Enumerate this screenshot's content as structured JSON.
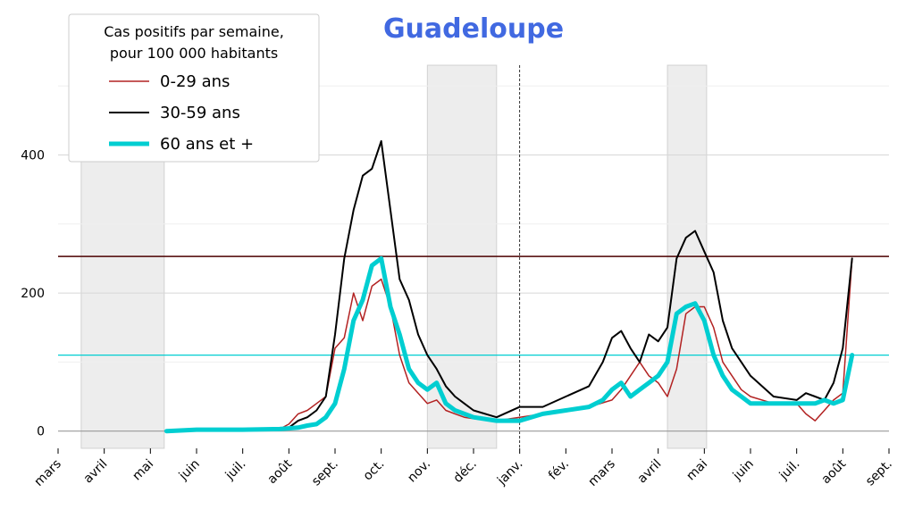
{
  "chart_data": {
    "type": "line",
    "title": "Guadeloupe",
    "legend_title": [
      "Cas positifs par semaine,",
      "pour 100 000 habitants"
    ],
    "legend_position": "top-left",
    "ylim": [
      -25,
      530
    ],
    "yticks": [
      0,
      200,
      400
    ],
    "xlim": [
      0,
      18
    ],
    "months": [
      "mars",
      "avril",
      "mai",
      "juin",
      "juil.",
      "août",
      "sept.",
      "oct.",
      "nov.",
      "déc.",
      "janv.",
      "fév.",
      "mars",
      "avril",
      "mai",
      "juin",
      "juil.",
      "août",
      "sept."
    ],
    "grid": "horizontal",
    "shaded_periods": [
      [
        0.5,
        2.3
      ],
      [
        8.0,
        9.5
      ],
      [
        13.2,
        14.05
      ]
    ],
    "vline": 10.0,
    "hlines": [
      {
        "y": 0,
        "color": "#999999"
      },
      {
        "y": 253,
        "color": "#b22222"
      },
      {
        "y": 253,
        "color": "#000000"
      },
      {
        "y": 110,
        "color": "#00ced1"
      }
    ],
    "series": [
      {
        "name": "0-29 ans",
        "color": "#b22222",
        "width": 1.5,
        "x": [
          2.35,
          3,
          4,
          4.8,
          5,
          5.2,
          5.4,
          5.6,
          5.8,
          6.0,
          6.2,
          6.4,
          6.6,
          6.8,
          7.0,
          7.2,
          7.4,
          7.6,
          7.8,
          8.0,
          8.2,
          8.4,
          8.6,
          8.8,
          9.0,
          9.5,
          10.0,
          10.5,
          11.0,
          11.5,
          12.0,
          12.2,
          12.4,
          12.6,
          12.8,
          13.0,
          13.2,
          13.4,
          13.6,
          13.8,
          14.0,
          14.2,
          14.4,
          14.6,
          14.8,
          15.0,
          15.5,
          16.0,
          16.2,
          16.4,
          16.6,
          16.8,
          17.0,
          17.2
        ],
        "y": [
          0,
          2,
          2,
          3,
          10,
          25,
          30,
          40,
          50,
          120,
          135,
          200,
          160,
          210,
          220,
          180,
          110,
          70,
          55,
          40,
          45,
          30,
          25,
          20,
          18,
          15,
          20,
          25,
          30,
          35,
          45,
          60,
          80,
          100,
          80,
          70,
          50,
          90,
          170,
          180,
          180,
          150,
          100,
          80,
          60,
          50,
          40,
          40,
          25,
          15,
          30,
          45,
          55,
          250
        ]
      },
      {
        "name": "30-59 ans",
        "color": "#000000",
        "width": 2,
        "x": [
          2.35,
          3,
          4,
          4.8,
          5,
          5.2,
          5.4,
          5.6,
          5.8,
          6.0,
          6.2,
          6.4,
          6.6,
          6.8,
          7.0,
          7.2,
          7.4,
          7.6,
          7.8,
          8.0,
          8.2,
          8.4,
          8.6,
          8.8,
          9.0,
          9.5,
          10.0,
          10.5,
          11.0,
          11.5,
          11.8,
          12.0,
          12.2,
          12.4,
          12.6,
          12.8,
          13.0,
          13.2,
          13.4,
          13.6,
          13.8,
          14.0,
          14.2,
          14.4,
          14.6,
          14.8,
          15.0,
          15.5,
          16.0,
          16.2,
          16.4,
          16.6,
          16.8,
          17.0,
          17.2
        ],
        "y": [
          0,
          2,
          2,
          3,
          5,
          15,
          20,
          30,
          50,
          140,
          250,
          320,
          370,
          380,
          420,
          320,
          220,
          190,
          140,
          110,
          90,
          65,
          50,
          40,
          30,
          20,
          35,
          35,
          50,
          65,
          100,
          135,
          145,
          120,
          100,
          140,
          130,
          150,
          250,
          280,
          290,
          260,
          230,
          160,
          120,
          100,
          80,
          50,
          45,
          55,
          50,
          45,
          70,
          120,
          250
        ]
      },
      {
        "name": "60 ans et +",
        "color": "#00ced1",
        "width": 5,
        "x": [
          2.35,
          3,
          4,
          4.8,
          5,
          5.2,
          5.4,
          5.6,
          5.8,
          6.0,
          6.2,
          6.4,
          6.6,
          6.8,
          7.0,
          7.2,
          7.4,
          7.6,
          7.8,
          8.0,
          8.2,
          8.4,
          8.6,
          8.8,
          9.0,
          9.5,
          10.0,
          10.5,
          11.0,
          11.5,
          11.8,
          12.0,
          12.2,
          12.4,
          12.6,
          12.8,
          13.0,
          13.2,
          13.4,
          13.6,
          13.8,
          14.0,
          14.2,
          14.4,
          14.6,
          14.8,
          15.0,
          15.5,
          16.0,
          16.2,
          16.4,
          16.6,
          16.8,
          17.0,
          17.2
        ],
        "y": [
          0,
          2,
          2,
          3,
          4,
          5,
          8,
          10,
          20,
          40,
          90,
          160,
          190,
          240,
          250,
          180,
          140,
          90,
          70,
          60,
          70,
          40,
          30,
          25,
          20,
          15,
          15,
          25,
          30,
          35,
          45,
          60,
          70,
          50,
          60,
          70,
          80,
          100,
          170,
          180,
          185,
          160,
          110,
          80,
          60,
          50,
          40,
          40,
          40,
          40,
          40,
          45,
          40,
          45,
          110
        ]
      }
    ]
  }
}
